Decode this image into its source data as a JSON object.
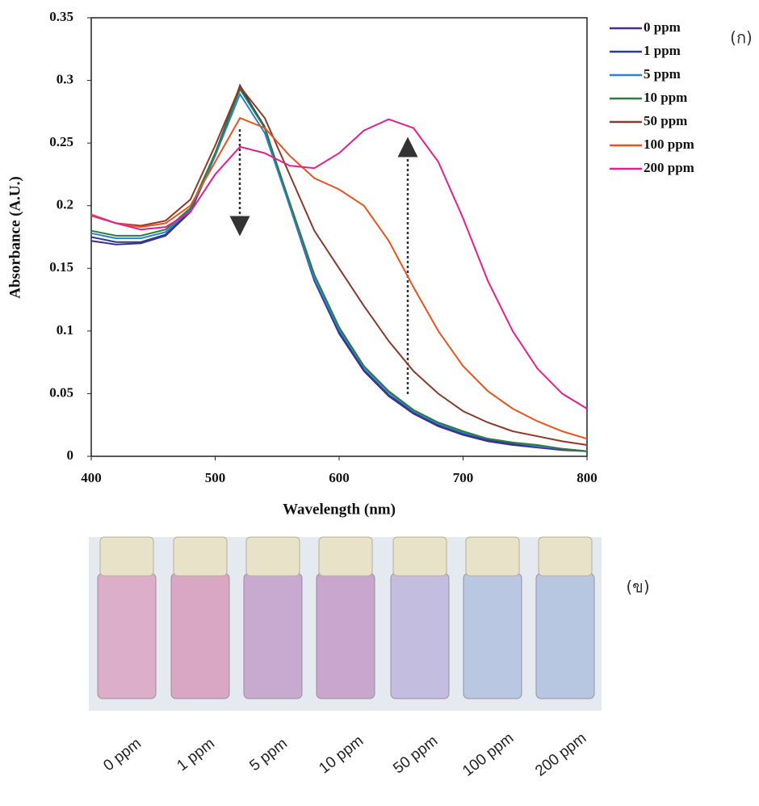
{
  "chart_data": {
    "type": "line",
    "x_label": "Wavelength  (nm)",
    "y_label": "Absorbance (A.U.)",
    "x": [
      400,
      420,
      440,
      460,
      480,
      500,
      520,
      540,
      560,
      580,
      600,
      620,
      640,
      660,
      680,
      700,
      720,
      740,
      760,
      780,
      800
    ],
    "series": [
      {
        "name": "0 ppm",
        "color": "#4b2a8c",
        "values": [
          0.172,
          0.169,
          0.17,
          0.176,
          0.195,
          0.24,
          0.296,
          0.262,
          0.2,
          0.14,
          0.098,
          0.068,
          0.048,
          0.034,
          0.024,
          0.017,
          0.012,
          0.009,
          0.007,
          0.005,
          0.004
        ]
      },
      {
        "name": "1 ppm",
        "color": "#24408f",
        "values": [
          0.175,
          0.171,
          0.171,
          0.177,
          0.196,
          0.242,
          0.295,
          0.263,
          0.201,
          0.141,
          0.099,
          0.069,
          0.049,
          0.035,
          0.025,
          0.018,
          0.013,
          0.01,
          0.008,
          0.006,
          0.004
        ]
      },
      {
        "name": "5 ppm",
        "color": "#2f80d0",
        "values": [
          0.178,
          0.174,
          0.174,
          0.179,
          0.197,
          0.24,
          0.289,
          0.258,
          0.2,
          0.142,
          0.101,
          0.071,
          0.051,
          0.036,
          0.026,
          0.019,
          0.014,
          0.011,
          0.008,
          0.006,
          0.004
        ]
      },
      {
        "name": "10 ppm",
        "color": "#2e7d3c",
        "values": [
          0.18,
          0.176,
          0.176,
          0.181,
          0.198,
          0.242,
          0.293,
          0.262,
          0.203,
          0.145,
          0.103,
          0.072,
          0.052,
          0.037,
          0.027,
          0.02,
          0.014,
          0.011,
          0.009,
          0.006,
          0.004
        ]
      },
      {
        "name": "50 ppm",
        "color": "#8b3a2a",
        "values": [
          0.193,
          0.186,
          0.184,
          0.188,
          0.205,
          0.248,
          0.295,
          0.27,
          0.225,
          0.18,
          0.15,
          0.12,
          0.092,
          0.068,
          0.05,
          0.036,
          0.027,
          0.02,
          0.016,
          0.012,
          0.009
        ]
      },
      {
        "name": "100 ppm",
        "color": "#e8541f",
        "values": [
          0.193,
          0.186,
          0.183,
          0.186,
          0.2,
          0.235,
          0.27,
          0.262,
          0.24,
          0.222,
          0.213,
          0.2,
          0.172,
          0.135,
          0.1,
          0.072,
          0.052,
          0.038,
          0.028,
          0.02,
          0.014
        ]
      },
      {
        "name": "200 ppm",
        "color": "#e0228f",
        "values": [
          0.192,
          0.186,
          0.181,
          0.183,
          0.195,
          0.225,
          0.247,
          0.242,
          0.232,
          0.23,
          0.242,
          0.26,
          0.269,
          0.262,
          0.235,
          0.19,
          0.14,
          0.1,
          0.07,
          0.05,
          0.038
        ]
      }
    ],
    "xlim": [
      400,
      800
    ],
    "xticks": [
      400,
      500,
      600,
      700,
      800
    ],
    "ylim": [
      0,
      0.35
    ],
    "yticks": [
      0,
      0.05,
      0.1,
      0.15,
      0.2,
      0.25,
      0.3,
      0.35
    ],
    "annotations": [
      "(ก)",
      "(ข)"
    ]
  },
  "photo": {
    "labels": [
      "0 ppm",
      "1 ppm",
      "5 ppm",
      "10 ppm",
      "50 ppm",
      "100 ppm",
      "200 ppm"
    ]
  }
}
